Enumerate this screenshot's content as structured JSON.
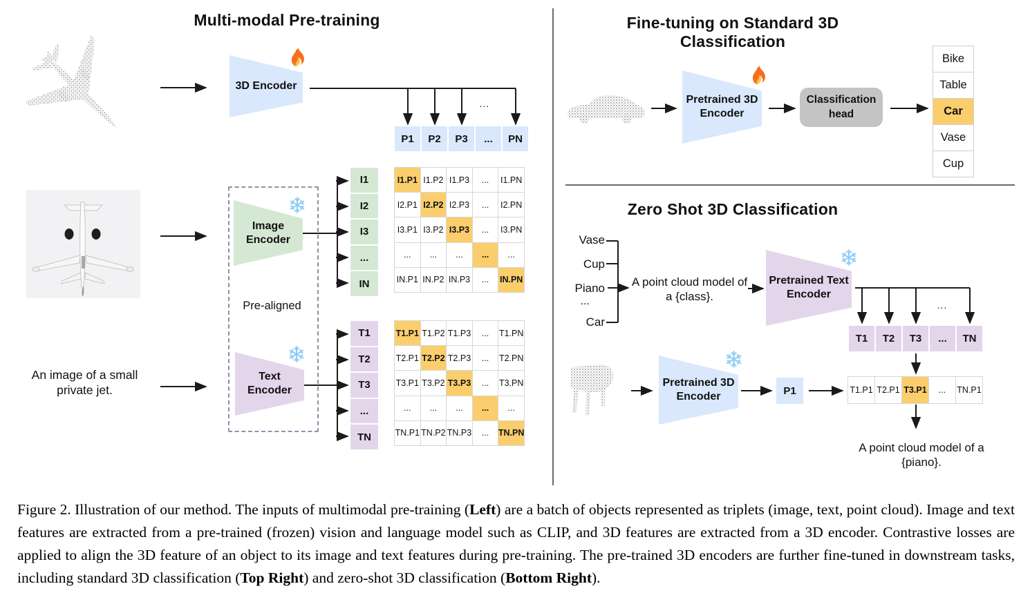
{
  "colors": {
    "blue": "#d9e8fc",
    "green": "#d5e8d4",
    "purple": "#e3d6ea",
    "orange": "#fbce6d",
    "cellb": "#d6d6d6",
    "headgray": "#c4c4c4",
    "line": "#1a1a1a",
    "dash": "#8794a6",
    "dot": "#9b9b9b",
    "photobg": "#f2f2f4"
  },
  "left": {
    "title": "Multi-modal Pre-training",
    "encoder_3d": "3D Encoder",
    "image_encoder": "Image\nEncoder",
    "text_encoder": "Text\nEncoder",
    "pre_aligned": "Pre-aligned",
    "input_text": "An image of a small\nprivate jet.",
    "dots": "...",
    "p_row": [
      "P1",
      "P2",
      "P3",
      "...",
      "PN"
    ],
    "i_col": [
      "I1",
      "I2",
      "I3",
      "...",
      "IN"
    ],
    "t_col": [
      "T1",
      "T2",
      "T3",
      "...",
      "TN"
    ],
    "i_matrix": [
      [
        "I1.P1",
        "I1.P2",
        "I1.P3",
        "...",
        "I1.PN"
      ],
      [
        "I2.P1",
        "I2.P2",
        "I2.P3",
        "...",
        "I2.PN"
      ],
      [
        "I3.P1",
        "I3.P2",
        "I3.P3",
        "...",
        "I3.PN"
      ],
      [
        "...",
        "...",
        "...",
        "...",
        "..."
      ],
      [
        "IN.P1",
        "IN.P2",
        "IN.P3",
        "...",
        "IN.PN"
      ]
    ],
    "t_matrix": [
      [
        "T1.P1",
        "T1.P2",
        "T1.P3",
        "...",
        "T1.PN"
      ],
      [
        "T2.P1",
        "T2.P2",
        "T2.P3",
        "...",
        "T2.PN"
      ],
      [
        "T3.P1",
        "T3.P2",
        "T3.P3",
        "...",
        "T3.PN"
      ],
      [
        "...",
        "...",
        "...",
        "...",
        "..."
      ],
      [
        "TN.P1",
        "TN.P2",
        "TN.P3",
        "...",
        "TN.PN"
      ]
    ]
  },
  "right_top": {
    "title": "Fine-tuning on Standard 3D Classification",
    "encoder": "Pretrained 3D\nEncoder",
    "head": "Classification\nhead",
    "classes": [
      "Bike",
      "Table",
      "Car",
      "Vase",
      "Cup"
    ]
  },
  "right_bottom": {
    "title": "Zero Shot 3D Classification",
    "class_labels": [
      "Vase",
      "Cup",
      "Piano",
      "...",
      "Car"
    ],
    "prompt": "A point cloud model of\na {class}.",
    "text_encoder": "Pretrained Text\nEncoder",
    "encoder": "Pretrained 3D\nEncoder",
    "p1": "P1",
    "t_row": [
      "T1",
      "T2",
      "T3",
      "...",
      "TN"
    ],
    "tp_row": [
      "T1.P1",
      "T2.P1",
      "T3.P1",
      "...",
      "TN.P1"
    ],
    "dots": "...",
    "result": "A point cloud model of a {piano}."
  },
  "caption": {
    "runs": [
      "Figure 2. Illustration of our method. The inputs of multimodal pre-training (",
      "Left",
      ") are a batch of objects represented as triplets (image, text, point cloud). Image and text features are extracted from a pre-trained (frozen) vision and language model such as CLIP, and 3D features are extracted from a 3D encoder. Contrastive losses are applied to align the 3D feature of an object to its image and text features during pre-training. The pre-trained 3D encoders are further fine-tuned in downstream tasks, including standard 3D classification (",
      "Top Right",
      ") and zero-shot 3D classification (",
      "Bottom Right",
      ")."
    ]
  }
}
